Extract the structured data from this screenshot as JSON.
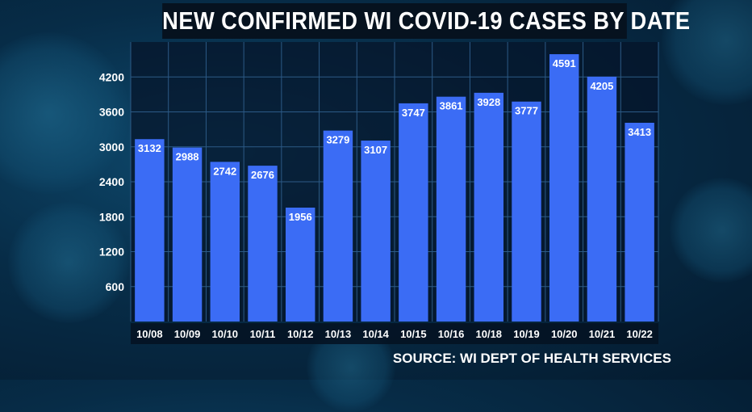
{
  "header": {
    "title": "NEW CONFIRMED WI COVID-19 CASES BY DATE"
  },
  "footer": {
    "source": "SOURCE: WI DEPT OF HEALTH SERVICES"
  },
  "colors": {
    "bar": "#3b6cf5",
    "grid": "#2c5a86",
    "title_bg": "#06121f"
  },
  "chart_data": {
    "type": "bar",
    "title": "NEW CONFIRMED WI COVID-19 CASES BY DATE",
    "categories": [
      "10/08",
      "10/09",
      "10/10",
      "10/11",
      "10/12",
      "10/13",
      "10/14",
      "10/15",
      "10/16",
      "10/18",
      "10/19",
      "10/20",
      "10/21",
      "10/22"
    ],
    "values": [
      3132,
      2988,
      2742,
      2676,
      1956,
      3279,
      3107,
      3747,
      3861,
      3928,
      3777,
      4591,
      4205,
      3413
    ],
    "yticks": [
      600,
      1200,
      1800,
      2400,
      3000,
      3600,
      4200
    ],
    "ylim": [
      0,
      4800
    ],
    "grid": true,
    "data_labels": true
  }
}
